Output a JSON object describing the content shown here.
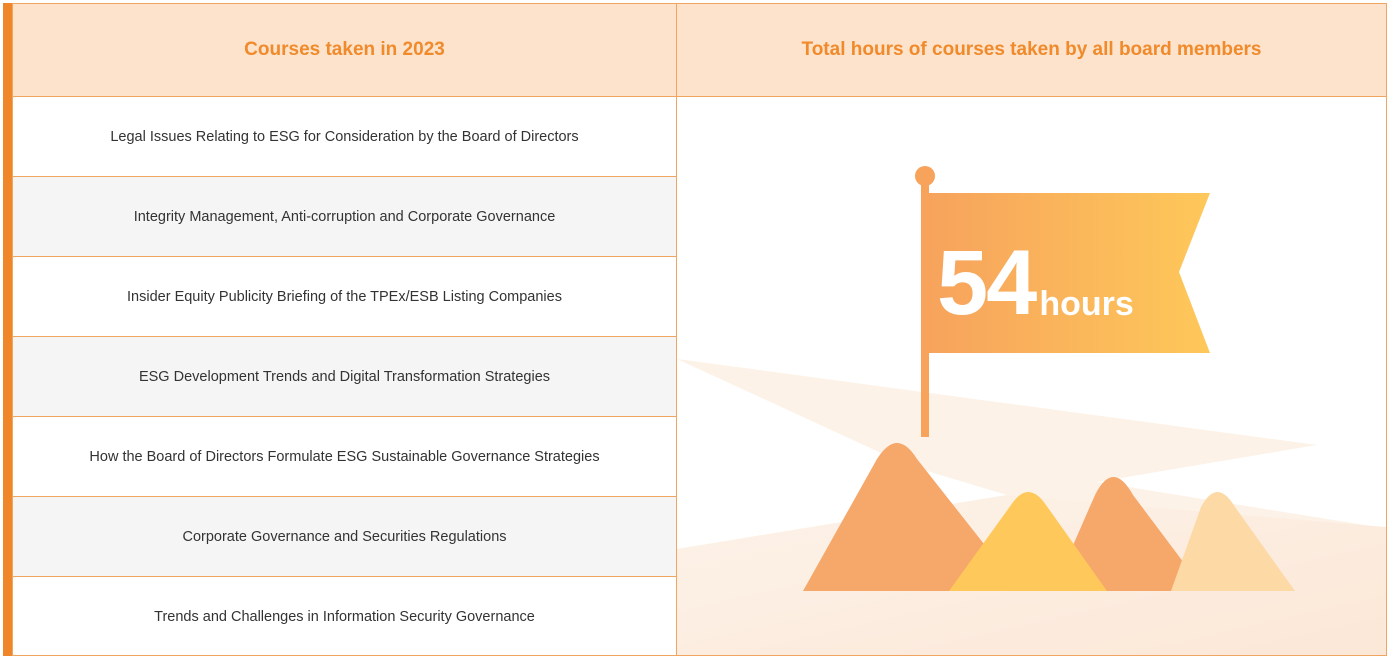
{
  "header": {
    "left_title": "Courses taken in 2023",
    "right_title": "Total hours of courses taken by all board members"
  },
  "courses": [
    "Legal Issues Relating to ESG for Consideration by the Board of Directors",
    "Integrity Management, Anti-corruption and Corporate Governance",
    "Insider Equity Publicity Briefing of the TPEx/ESB Listing Companies",
    "ESG Development Trends and Digital Transformation Strategies",
    "How the Board of Directors Formulate ESG Sustainable Governance Strategies",
    "Corporate Governance and Securities Regulations",
    "Trends and Challenges in Information Security Governance"
  ],
  "total": {
    "value": "54",
    "unit": "hours"
  },
  "colors": {
    "accent": "#f0862a",
    "header_bg": "#fde3cc",
    "title": "#f08a2a",
    "flag_start": "#f7a35c",
    "flag_end": "#fec85a"
  }
}
